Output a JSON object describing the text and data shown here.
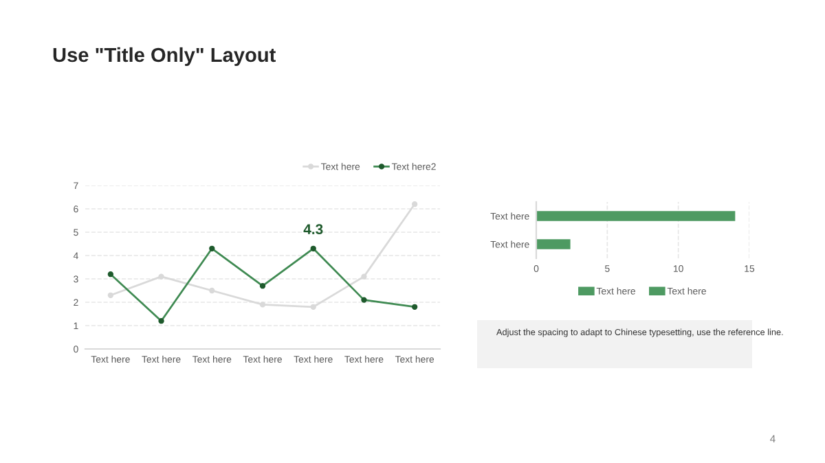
{
  "chart_data": [
    {
      "type": "line",
      "title": "Use \"Title Only\" Layout",
      "categories": [
        "Text here",
        "Text here",
        "Text here",
        "Text here",
        "Text here",
        "Text here",
        "Text here"
      ],
      "series": [
        {
          "name": "Text here",
          "color": "#d9d9d9",
          "values": [
            2.3,
            3.1,
            2.5,
            1.9,
            1.8,
            3.1,
            6.2
          ]
        },
        {
          "name": "Text here2",
          "color": "#3f8a52",
          "values": [
            3.2,
            1.2,
            4.3,
            2.7,
            4.3,
            2.1,
            1.8
          ],
          "value_labels": [
            null,
            null,
            null,
            null,
            "4.3",
            null,
            null
          ]
        }
      ],
      "ylim": [
        0,
        7
      ],
      "yticks": [
        0,
        1,
        2,
        3,
        4,
        5,
        6,
        7
      ],
      "grid": "y",
      "legend": "top right",
      "marker": "circle",
      "line_style": "solid"
    },
    {
      "type": "bar",
      "orientation": "horizontal",
      "categories": [
        "Text here",
        "Text here"
      ],
      "series": [
        {
          "name": "Text here",
          "color": "#4e9a62",
          "values": [
            14,
            null
          ]
        },
        {
          "name": "Text here",
          "color": "#4e9a62",
          "values": [
            null,
            2.4
          ]
        }
      ],
      "xlim": [
        0,
        15
      ],
      "xticks": [
        0,
        5,
        10,
        15
      ],
      "grid": "x",
      "legend": "bottom"
    },
    {
      "type": "other",
      "annotations": [
        "Adjust the spacing to adapt to Chinese typesetting, use the reference line.",
        "4"
      ]
    }
  ]
}
